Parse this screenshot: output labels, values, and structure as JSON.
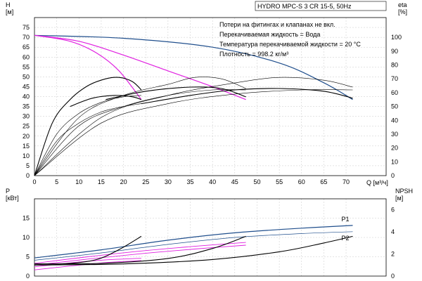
{
  "title": "HYDRO MPC-S 3 CR 15-5, 50Hz",
  "notes": [
    "Потери на фитингах и клапанах не вкл.",
    "Перекачиваемая жидкость = Вода",
    "Температура перекачиваемой жидкости = 20 °C",
    "Плотность = 998.2 кг/м³"
  ],
  "colors": {
    "head": "#1f4e8c",
    "system": "#e020e0",
    "eff": "#000000",
    "power_p1": "#1f4e8c",
    "power_p2": "#1f4e8c",
    "grid": "#c8c8c8"
  },
  "chart_data": [
    {
      "type": "line",
      "name": "head-efficiency",
      "xlabel": "Q [м³/ч]",
      "ylabel": "H [м]",
      "y2label": "eta [%]",
      "xlim": [
        0,
        79
      ],
      "ylim": [
        0,
        80
      ],
      "y2lim": [
        0,
        114.3
      ],
      "xticks": [
        0,
        5,
        10,
        15,
        20,
        25,
        30,
        35,
        40,
        45,
        50,
        55,
        60,
        65,
        70
      ],
      "yticks": [
        0,
        5,
        10,
        15,
        20,
        25,
        30,
        35,
        40,
        45,
        50,
        55,
        60,
        65,
        70,
        75
      ],
      "y2ticks": [
        0,
        10,
        20,
        30,
        40,
        50,
        60,
        70,
        80,
        90,
        100
      ],
      "series": [
        {
          "kind": "head",
          "axis": "y",
          "points": [
            [
              0,
              71
            ],
            [
              20,
              69.5
            ],
            [
              40,
              65
            ],
            [
              55,
              57
            ],
            [
              65,
              47
            ],
            [
              71.5,
              38.5
            ]
          ]
        },
        {
          "kind": "system",
          "axis": "y",
          "points": [
            [
              0,
              71
            ],
            [
              10,
              68
            ],
            [
              20,
              61
            ],
            [
              30,
              53
            ],
            [
              40,
              45
            ],
            [
              47.5,
              38.5
            ]
          ]
        },
        {
          "kind": "system",
          "axis": "y",
          "points": [
            [
              0,
              71
            ],
            [
              8,
              68
            ],
            [
              14,
              62
            ],
            [
              19,
              53
            ],
            [
              24,
              38.5
            ]
          ]
        },
        {
          "kind": "eff",
          "axis": "y2",
          "points": [
            [
              0,
              0
            ],
            [
              4,
              38
            ],
            [
              8,
              55
            ],
            [
              12,
              65
            ],
            [
              16,
              70
            ],
            [
              19,
              71
            ],
            [
              22,
              68
            ],
            [
              24,
              62
            ]
          ]
        },
        {
          "kind": "eff",
          "axis": "y2",
          "points": [
            [
              0,
              0
            ],
            [
              5,
              30
            ],
            [
              10,
              45
            ],
            [
              15,
              53
            ],
            [
              20,
              57
            ],
            [
              24,
              58
            ]
          ]
        },
        {
          "kind": "eff",
          "axis": "y2",
          "points": [
            [
              0,
              0
            ],
            [
              5,
              25
            ],
            [
              10,
              38
            ],
            [
              15,
              46
            ],
            [
              20,
              50
            ],
            [
              24,
              52
            ]
          ]
        },
        {
          "kind": "eff",
          "axis": "y2",
          "points": [
            [
              8,
              50
            ],
            [
              13,
              56
            ],
            [
              18,
              58
            ],
            [
              22,
              57
            ],
            [
              24,
              55
            ]
          ]
        },
        {
          "kind": "eff",
          "axis": "y2",
          "points": [
            [
              0,
              0
            ],
            [
              10,
              42
            ],
            [
              20,
              58
            ],
            [
              30,
              66
            ],
            [
              36,
              71
            ],
            [
              42,
              70
            ],
            [
              47.5,
              63
            ]
          ]
        },
        {
          "kind": "eff",
          "axis": "y2",
          "points": [
            [
              0,
              0
            ],
            [
              10,
              36
            ],
            [
              20,
              50
            ],
            [
              30,
              58
            ],
            [
              40,
              62
            ],
            [
              47.5,
              62
            ]
          ]
        },
        {
          "kind": "eff",
          "axis": "y2",
          "points": [
            [
              16,
              55
            ],
            [
              25,
              61
            ],
            [
              35,
              64
            ],
            [
              42,
              63
            ],
            [
              47.5,
              57
            ]
          ]
        },
        {
          "kind": "eff",
          "axis": "y2",
          "points": [
            [
              0,
              0
            ],
            [
              15,
              42
            ],
            [
              30,
              58
            ],
            [
              45,
              67
            ],
            [
              55,
              71
            ],
            [
              65,
              69
            ],
            [
              71.5,
              64
            ]
          ]
        },
        {
          "kind": "eff",
          "axis": "y2",
          "points": [
            [
              0,
              0
            ],
            [
              15,
              38
            ],
            [
              30,
              52
            ],
            [
              45,
              59
            ],
            [
              60,
              62
            ],
            [
              71.5,
              62
            ]
          ]
        },
        {
          "kind": "eff",
          "axis": "y2",
          "points": [
            [
              24,
              52
            ],
            [
              35,
              58
            ],
            [
              45,
              62
            ],
            [
              55,
              63
            ],
            [
              65,
              61
            ],
            [
              71.5,
              56
            ]
          ]
        }
      ]
    },
    {
      "type": "line",
      "name": "power-npsh",
      "ylabel": "P [кВт]",
      "y2label": "NPSH [м]",
      "xlim": [
        0,
        79
      ],
      "ylim": [
        0,
        20
      ],
      "y2lim": [
        0,
        7
      ],
      "yticks": [
        0,
        5,
        10,
        15
      ],
      "y2ticks": [
        0,
        2,
        4,
        6
      ],
      "series": [
        {
          "kind": "power_p1",
          "name": "P1",
          "axis": "y",
          "points": [
            [
              0,
              4.7
            ],
            [
              15,
              6.8
            ],
            [
              30,
              9.3
            ],
            [
              45,
              11.2
            ],
            [
              60,
              12.4
            ],
            [
              71.5,
              13.1
            ]
          ]
        },
        {
          "kind": "power_p2",
          "name": "P2",
          "axis": "y",
          "points": [
            [
              0,
              4.1
            ],
            [
              15,
              6.0
            ],
            [
              30,
              8.2
            ],
            [
              45,
              10.0
            ],
            [
              60,
              11.0
            ],
            [
              71.5,
              11.5
            ]
          ]
        },
        {
          "kind": "system",
          "axis": "y",
          "points": [
            [
              0,
              3.3
            ],
            [
              12,
              5.0
            ],
            [
              24,
              6.5
            ],
            [
              36,
              7.7
            ],
            [
              47.5,
              8.7
            ]
          ]
        },
        {
          "kind": "system",
          "axis": "y",
          "points": [
            [
              0,
              2.8
            ],
            [
              12,
              4.4
            ],
            [
              24,
              5.8
            ],
            [
              36,
              7.0
            ],
            [
              47.5,
              8.0
            ]
          ]
        },
        {
          "kind": "system",
          "axis": "y",
          "points": [
            [
              0,
              2.4
            ],
            [
              8,
              3.4
            ],
            [
              16,
              4.2
            ],
            [
              24,
              4.6
            ]
          ]
        },
        {
          "kind": "system",
          "axis": "y",
          "points": [
            [
              0,
              1.6
            ],
            [
              8,
              2.6
            ],
            [
              16,
              3.5
            ],
            [
              24,
              4.0
            ]
          ]
        },
        {
          "kind": "eff",
          "axis": "y2",
          "points": [
            [
              0,
              1.1
            ],
            [
              8,
              1.15
            ],
            [
              14,
              1.5
            ],
            [
              19,
              2.4
            ],
            [
              24,
              3.6
            ]
          ]
        },
        {
          "kind": "eff",
          "axis": "y2",
          "points": [
            [
              0,
              1.1
            ],
            [
              15,
              1.15
            ],
            [
              30,
              1.6
            ],
            [
              40,
              2.5
            ],
            [
              47.5,
              3.6
            ]
          ]
        },
        {
          "kind": "eff",
          "axis": "y2",
          "points": [
            [
              0,
              1.0
            ],
            [
              20,
              1.1
            ],
            [
              40,
              1.5
            ],
            [
              55,
              2.2
            ],
            [
              65,
              3.0
            ],
            [
              71.5,
              3.6
            ]
          ]
        }
      ]
    }
  ]
}
